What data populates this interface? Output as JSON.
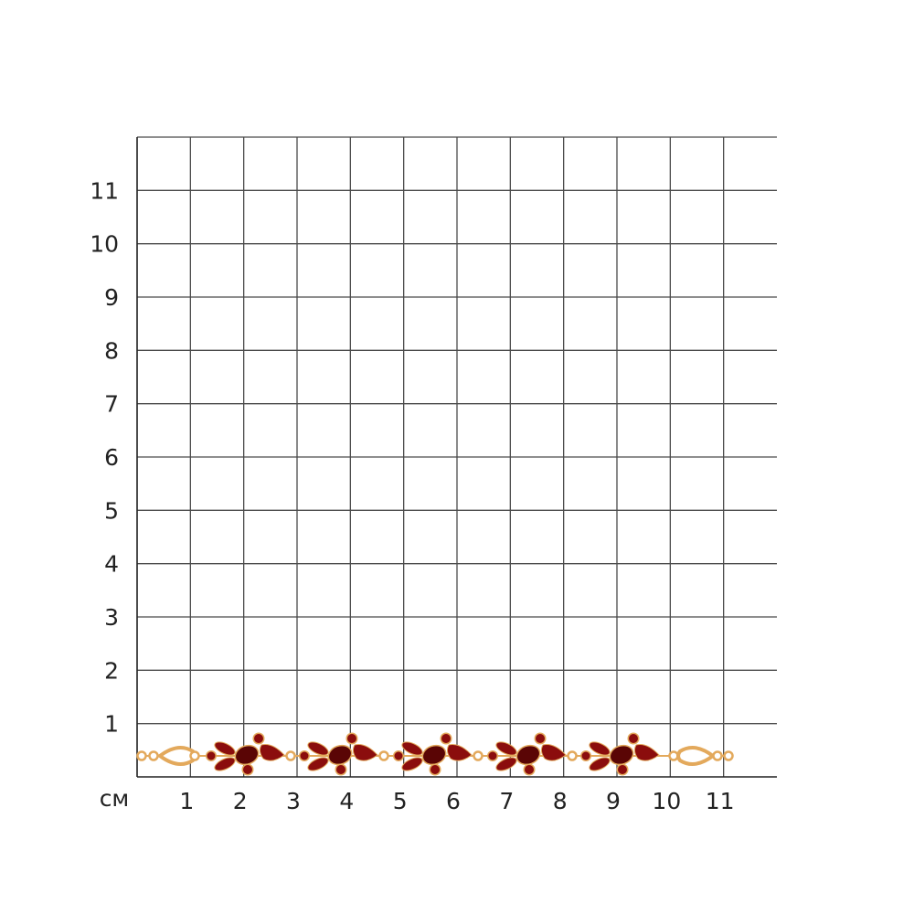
{
  "unit_label": "см",
  "x_ticks": [
    "1",
    "2",
    "3",
    "4",
    "5",
    "6",
    "7",
    "8",
    "9",
    "10",
    "11"
  ],
  "y_ticks": [
    "1",
    "2",
    "3",
    "4",
    "5",
    "6",
    "7",
    "8",
    "9",
    "10",
    "11"
  ],
  "grid": {
    "cells": 12,
    "line_color": "#4a4a4a"
  },
  "product": {
    "clusters": 5,
    "stone_color": "#8b0d0d",
    "metal_color": "#e3a95c"
  }
}
